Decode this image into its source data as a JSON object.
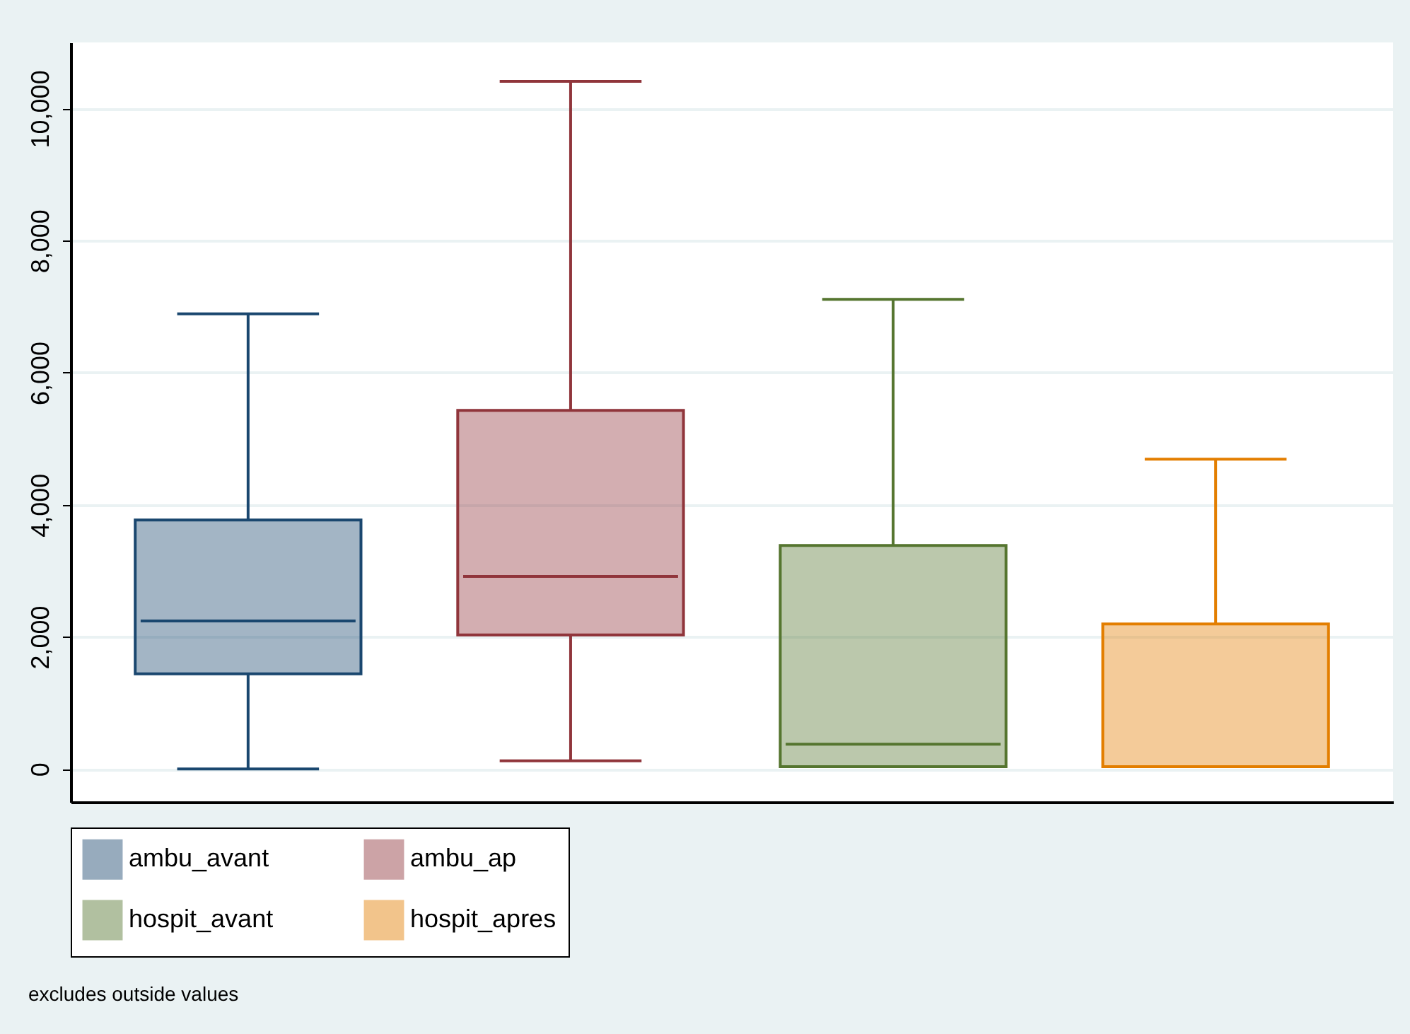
{
  "chart_data": {
    "type": "box",
    "categories": [
      null,
      null,
      null,
      null
    ],
    "series": [
      {
        "name": "ambu_avant",
        "color": "#1a476f",
        "boxes": [
          {
            "low": 0,
            "q1": 1440,
            "median": 2240,
            "q3": 3770,
            "high": 6890
          },
          null,
          null,
          null
        ]
      },
      {
        "name": "ambu_ap",
        "color": "#90353b",
        "boxes": [
          null,
          {
            "low": 125,
            "q1": 2030,
            "median": 2915,
            "q3": 5430,
            "high": 10410
          },
          null,
          null
        ]
      },
      {
        "name": "hospit_avant",
        "color": "#55752f",
        "boxes": [
          null,
          null,
          {
            "low": 35,
            "q1": 35,
            "median": 375,
            "q3": 3385,
            "high": 7110
          },
          null
        ]
      },
      {
        "name": "hospit_apres",
        "color": "#e37e00",
        "boxes": [
          null,
          null,
          null,
          {
            "low": 35,
            "q1": 35,
            "median": 35,
            "q3": 2195,
            "high": 4690
          }
        ]
      }
    ],
    "ylim": [
      -500,
      11000
    ],
    "yticks": [
      {
        "value": 0,
        "label": "0"
      },
      {
        "value": 2000,
        "label": "2,000"
      },
      {
        "value": 4000,
        "label": "4,000"
      },
      {
        "value": 6000,
        "label": "6,000"
      },
      {
        "value": 8000,
        "label": "8,000"
      },
      {
        "value": 10000,
        "label": "10,000"
      }
    ],
    "grid": "y",
    "legend": "bottom",
    "tick_labels": "y",
    "annotations": [
      "excludes outside values"
    ]
  }
}
